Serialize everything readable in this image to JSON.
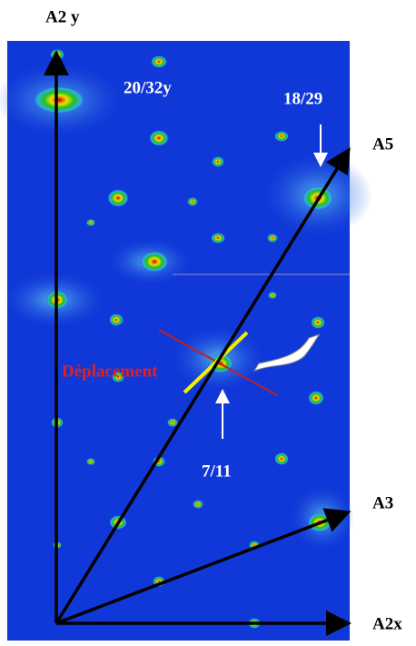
{
  "labels": {
    "a2y": "A2 y",
    "spot_20_32y": "20/32y",
    "spot_18_29": "18/29",
    "a5": "A5",
    "deplacement": "Déplacement",
    "spot_7_11": "7/11",
    "a3": "A3",
    "a2x": "A2x"
  }
}
